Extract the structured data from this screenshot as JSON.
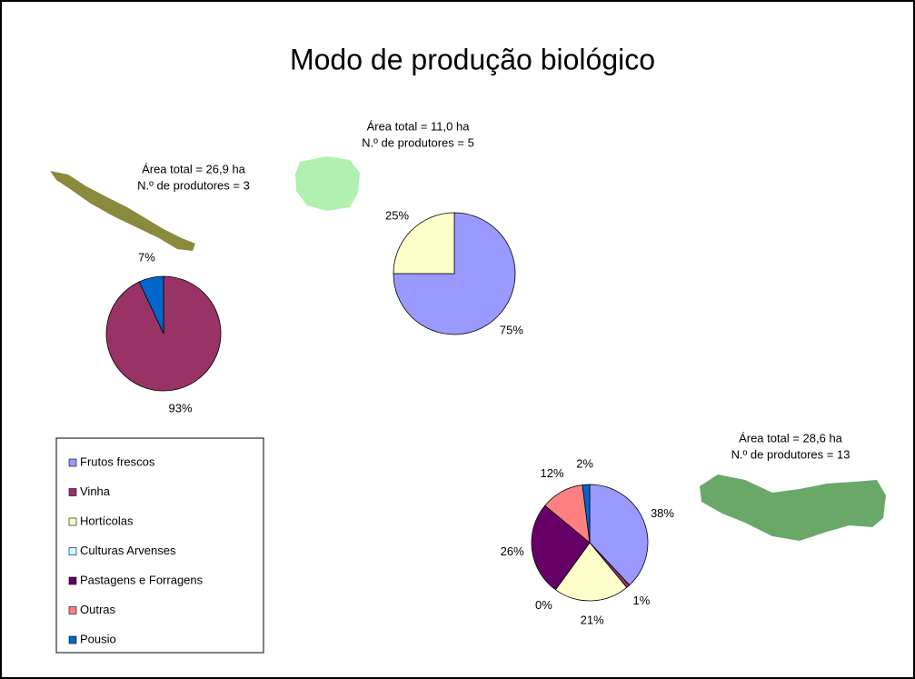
{
  "title": "Modo de produção biológico",
  "legend": {
    "categories": [
      "Frutos frescos",
      "Vinha",
      "Hortícolas",
      "Culturas Arvenses",
      "Pastagens e Forragens",
      "Outras",
      "Pousio"
    ],
    "colors": [
      "#9999ff",
      "#993366",
      "#ffffcc",
      "#ccffff",
      "#660066",
      "#ff8080",
      "#0066cc"
    ]
  },
  "chart_data": [
    {
      "type": "pie",
      "annotations": [
        "Área total = 26,9 ha",
        "N.º de produtores = 3"
      ],
      "categories": [
        "Vinha",
        "Pousio"
      ],
      "values": [
        93,
        7
      ],
      "value_labels": [
        "93%",
        "7%"
      ]
    },
    {
      "type": "pie",
      "annotations": [
        "Área total = 11,0 ha",
        "N.º de produtores = 5"
      ],
      "categories": [
        "Frutos frescos",
        "Hortícolas"
      ],
      "values": [
        75,
        25
      ],
      "value_labels": [
        "75%",
        "25%"
      ]
    },
    {
      "type": "pie",
      "annotations": [
        "Área total = 28,6 ha",
        "N.º de produtores = 13"
      ],
      "categories": [
        "Frutos frescos",
        "Vinha",
        "Hortícolas",
        "Culturas Arvenses",
        "Pastagens e Forragens",
        "Outras",
        "Pousio"
      ],
      "values": [
        38,
        1,
        21,
        0,
        26,
        12,
        2
      ],
      "value_labels": [
        "38%",
        "1%",
        "21%",
        "0%",
        "26%",
        "12%",
        "2%"
      ]
    }
  ]
}
